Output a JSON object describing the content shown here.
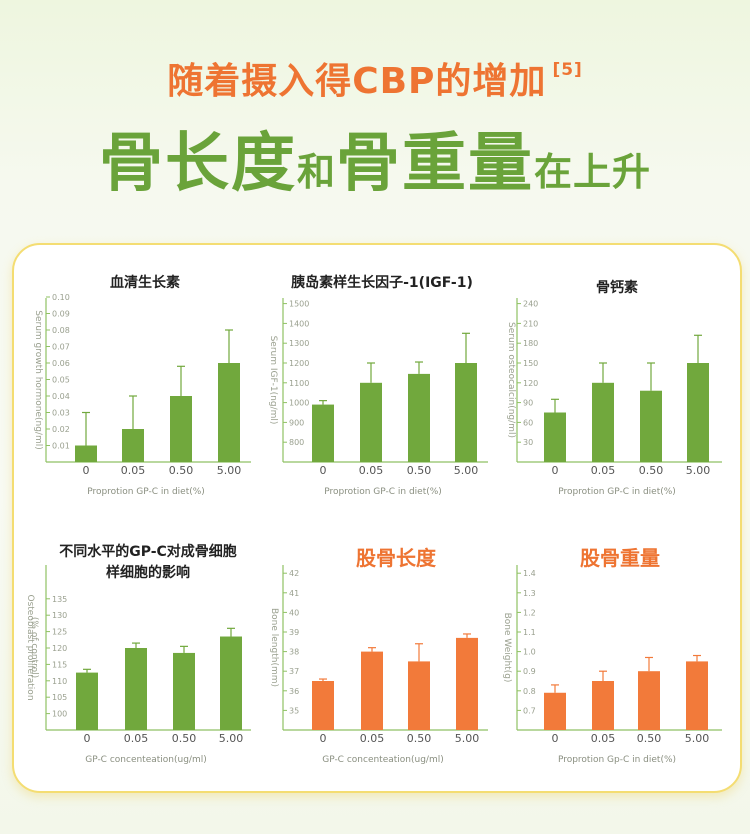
{
  "headline": {
    "line1": "随着摄入得CBP的增加",
    "ref": "[5]",
    "line2_part1": "骨长度",
    "line2_part2": "和",
    "line2_part3": "骨重量",
    "line2_part4": "在上升"
  },
  "colors": {
    "green": "#71a83d",
    "orange": "#f27a3a",
    "axis": "#8fc163",
    "title_green": "#6aa33a",
    "title_orange": "#ee7432"
  },
  "chart_data": [
    {
      "type": "bar",
      "title": "血清生长素",
      "ylabel": "Serum growth hormone(ng/ml)",
      "xlabel": "Proprotion GP-C in diet(%)",
      "categories": [
        "0",
        "0.05",
        "0.50",
        "5.00"
      ],
      "values": [
        0.01,
        0.02,
        0.04,
        0.06
      ],
      "errors": [
        0.03,
        0.04,
        0.058,
        0.08
      ],
      "yticks": [
        "0.01",
        "0.02",
        "0.03",
        "0.04",
        "0.05",
        "0.06",
        "0.07",
        "0.08",
        "0.09",
        "0.10"
      ],
      "ylim": [
        0,
        0.1
      ],
      "color": "green"
    },
    {
      "type": "bar",
      "title": "胰岛素样生长因子-1(IGF-1)",
      "ylabel": "Serum IGF-1(ng/ml)",
      "xlabel": "Proprotion GP-C in diet(%)",
      "categories": [
        "0",
        "0.05",
        "0.50",
        "5.00"
      ],
      "values": [
        990,
        1100,
        1145,
        1200
      ],
      "errors": [
        1010,
        1200,
        1205,
        1350
      ],
      "yticks": [
        "800",
        "900",
        "1000",
        "1100",
        "1200",
        "1300",
        "1400",
        "1500"
      ],
      "ylim": [
        700,
        1500
      ],
      "color": "green"
    },
    {
      "type": "bar",
      "title": "骨钙素",
      "ylabel": "Serum osteocalcin(ng/ml)",
      "xlabel": "Proprotion GP-C in diet(%)",
      "categories": [
        "0",
        "0.05",
        "0.50",
        "5.00"
      ],
      "values": [
        75,
        120,
        108,
        150
      ],
      "errors": [
        95,
        150,
        150,
        192
      ],
      "yticks": [
        "30",
        "60",
        "90",
        "120",
        "150",
        "180",
        "210",
        "240"
      ],
      "ylim": [
        0,
        240
      ],
      "color": "green"
    },
    {
      "type": "bar",
      "title": "不同水平的GP-C对成骨细胞",
      "title2": "样细胞的影响",
      "ylabel": "Osteoblast proliferation",
      "ylabel2": "(% of control)",
      "xlabel": "GP-C concenteation(ug/ml)",
      "categories": [
        "0",
        "0.05",
        "0.50",
        "5.00"
      ],
      "values": [
        112.5,
        120,
        118.5,
        123.5
      ],
      "errors": [
        113.5,
        121.5,
        120.5,
        126
      ],
      "yticks": [
        "100",
        "105",
        "110",
        "115",
        "120",
        "125",
        "130",
        "135"
      ],
      "ylim": [
        95,
        135
      ],
      "color": "green"
    },
    {
      "type": "bar",
      "title": "股骨长度",
      "ylabel": "Bone length(mm)",
      "xlabel": "GP-C concenteation(ug/ml)",
      "categories": [
        "0",
        "0.05",
        "0.50",
        "5.00"
      ],
      "values": [
        36.5,
        38,
        37.5,
        38.7
      ],
      "errors": [
        36.6,
        38.2,
        38.4,
        38.9
      ],
      "yticks": [
        "35",
        "36",
        "37",
        "38",
        "39",
        "40",
        "41",
        "42"
      ],
      "ylim": [
        34,
        42
      ],
      "color": "orange"
    },
    {
      "type": "bar",
      "title": "股骨重量",
      "ylabel": "Bone Weight(g)",
      "xlabel": "Proprotion Gp-C in diet(%)",
      "categories": [
        "0",
        "0.05",
        "0.50",
        "5.00"
      ],
      "values": [
        0.79,
        0.85,
        0.9,
        0.95
      ],
      "errors": [
        0.83,
        0.9,
        0.97,
        0.98
      ],
      "yticks": [
        "0.7",
        "0.8",
        "0.9",
        "1.0",
        "1.1",
        "1.2",
        "1.3",
        "1.4"
      ],
      "ylim": [
        0.6,
        1.4
      ],
      "color": "orange"
    }
  ]
}
